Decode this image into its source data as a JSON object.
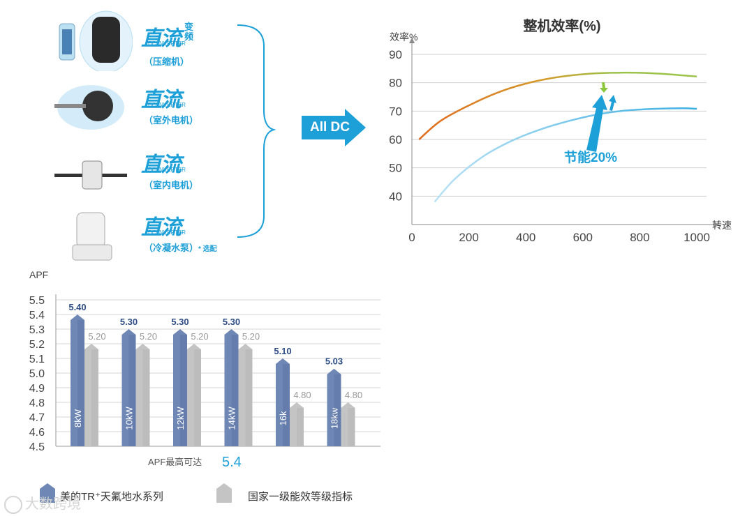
{
  "components": [
    {
      "brand": "直流",
      "extra": "变频",
      "sub": "DC INVERTER",
      "label": "（压缩机）",
      "note": "",
      "icon": "compressor-icon"
    },
    {
      "brand": "直流",
      "extra": "",
      "sub": "DC INVERTER",
      "label": "（室外电机）",
      "note": "",
      "icon": "outdoor-fan-motor-icon"
    },
    {
      "brand": "直流",
      "extra": "",
      "sub": "DC INVERTER",
      "label": "（室内电机）",
      "note": "",
      "icon": "indoor-motor-icon"
    },
    {
      "brand": "直流",
      "extra": "",
      "sub": "DC INVERTER",
      "label": "（冷凝水泵）",
      "note": "* 选配",
      "icon": "condensate-pump-icon"
    }
  ],
  "arrow_label": "All DC",
  "watermark": "大数跨境",
  "colors": {
    "accent_blue": "#1d9fd8",
    "bar_blue": "#6f87b5",
    "bar_gray": "#c4c4c4",
    "line_orange": "#e06a1e",
    "line_green": "#9bc34a",
    "line_lightblue": "#86cdee"
  },
  "chart_data": [
    {
      "type": "line",
      "title": "整机效率(%)",
      "ylabel": "效率%",
      "xlabel": "转速",
      "xticks": [
        0,
        200,
        400,
        600,
        800,
        1000
      ],
      "yticks": [
        40,
        50,
        60,
        70,
        80,
        90
      ],
      "xlim": [
        0,
        1000
      ],
      "ylim": [
        30,
        90
      ],
      "grid": true,
      "annotation": "节能20%",
      "series": [
        {
          "x": [
            25,
            100,
            200,
            300,
            400,
            500,
            600,
            700,
            800,
            900,
            1000
          ],
          "y": [
            60,
            66.5,
            72,
            76.5,
            79.7,
            81.8,
            83.0,
            83.5,
            83.5,
            83.0,
            82.2
          ]
        },
        {
          "x": [
            80,
            150,
            250,
            350,
            450,
            550,
            650,
            750,
            850,
            950,
            1000
          ],
          "y": [
            38,
            46,
            54,
            59.5,
            63.5,
            66.5,
            68.8,
            70.2,
            70.8,
            71.0,
            70.8
          ]
        }
      ]
    },
    {
      "type": "bar",
      "ylabel": "APF",
      "ylim": [
        4.5,
        5.5
      ],
      "yticks": [
        "5.5",
        "5.4",
        "5.3",
        "5.2",
        "5.1",
        "5.0",
        "4.9",
        "4.8",
        "4.7",
        "4.6",
        "4.5"
      ],
      "categories": [
        "8kW",
        "10kW",
        "12kW",
        "14kW",
        "16k",
        "18kw"
      ],
      "series": [
        {
          "name": "美的TR⁺天氟地水系列",
          "values": [
            5.4,
            5.3,
            5.3,
            5.3,
            5.1,
            5.03
          ],
          "labels": [
            "5.40",
            "5.30",
            "5.30",
            "5.30",
            "5.10",
            "5.03"
          ]
        },
        {
          "name": "国家一级能效等级指标",
          "values": [
            5.2,
            5.2,
            5.2,
            5.2,
            4.8,
            4.8
          ],
          "labels": [
            "5.20",
            "5.20",
            "5.20",
            "5.20",
            "4.80",
            "4.80"
          ]
        }
      ],
      "caption_text": "APF最高可达",
      "caption_value": "5.4",
      "legend": "bottom"
    }
  ]
}
